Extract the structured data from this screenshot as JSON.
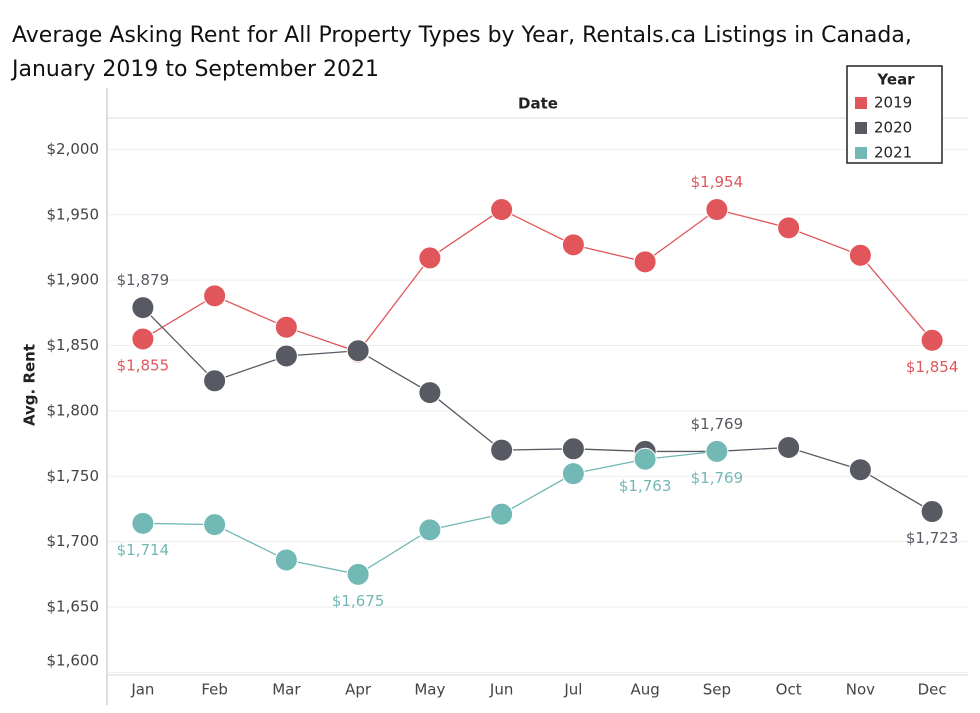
{
  "chart_data": {
    "type": "line",
    "title": [
      "Average Asking Rent for All Property Types by Year, Rentals.ca Listings in Canada,",
      "January 2019 to September 2021"
    ],
    "header": "Date",
    "ylabel": "Avg. Rent",
    "legend_title": "Year",
    "legend": "top-right",
    "grid": true,
    "categories": [
      "Jan",
      "Feb",
      "Mar",
      "Apr",
      "May",
      "Jun",
      "Jul",
      "Aug",
      "Sep",
      "Oct",
      "Nov",
      "Dec"
    ],
    "ylim": [
      1598,
      2024
    ],
    "yticks": [
      {
        "value": 1600,
        "label": "$1,600"
      },
      {
        "value": 1650,
        "label": "$1,650"
      },
      {
        "value": 1700,
        "label": "$1,700"
      },
      {
        "value": 1750,
        "label": "$1,750"
      },
      {
        "value": 1800,
        "label": "$1,800"
      },
      {
        "value": 1850,
        "label": "$1,850"
      },
      {
        "value": 1900,
        "label": "$1,900"
      },
      {
        "value": 1950,
        "label": "$1,950"
      },
      {
        "value": 2000,
        "label": "$2,000"
      }
    ],
    "series": [
      {
        "name": "2019",
        "color": "#e0565b",
        "values": [
          1855,
          1888,
          1864,
          1845,
          1917,
          1954,
          1927,
          1914,
          1954,
          1940,
          1919,
          1854
        ],
        "value_labels": [
          "$1,855",
          null,
          null,
          null,
          null,
          null,
          null,
          null,
          "$1,954",
          null,
          null,
          "$1,854"
        ]
      },
      {
        "name": "2020",
        "color": "#575a63",
        "values": [
          1879,
          1823,
          1842,
          1846,
          1814,
          1770,
          1771,
          1769,
          1769,
          1772,
          1755,
          1723
        ],
        "value_labels": [
          "$1,879",
          null,
          null,
          null,
          null,
          null,
          null,
          null,
          "$1,769",
          null,
          null,
          "$1,723"
        ]
      },
      {
        "name": "2021",
        "color": "#72b8b5",
        "values": [
          1714,
          1713,
          1686,
          1675,
          1709,
          1721,
          1752,
          1763,
          1769,
          null,
          null,
          null
        ],
        "value_labels": [
          "$1,714",
          null,
          null,
          "$1,675",
          null,
          null,
          null,
          "$1,763",
          "$1,769",
          null,
          null,
          null
        ]
      }
    ]
  }
}
